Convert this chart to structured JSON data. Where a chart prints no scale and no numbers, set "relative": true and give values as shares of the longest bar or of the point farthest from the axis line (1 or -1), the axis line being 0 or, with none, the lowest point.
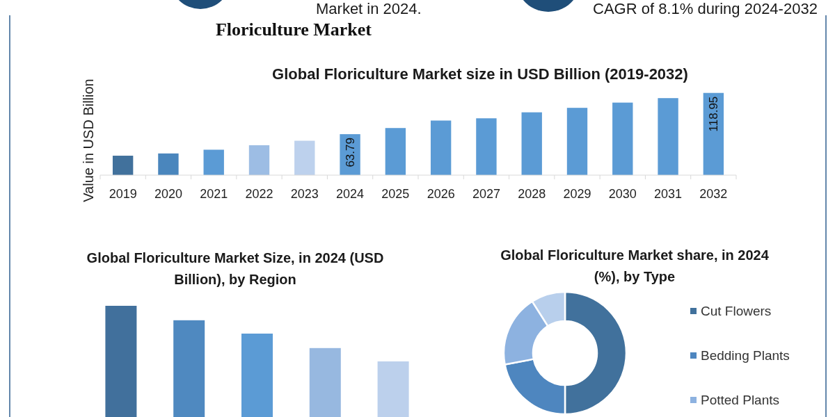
{
  "chart_data": [
    {
      "type": "other",
      "title": "Floriculture Market",
      "annotations": [
        "Market in 2024.",
        "CAGR of 8.1% during 2024-2032"
      ]
    },
    {
      "type": "bar",
      "title": "Global Floriculture Market size in USD Billion (2019-2032)",
      "ylabel": "Value in USD Billion",
      "categories": [
        "2019",
        "2020",
        "2021",
        "2022",
        "2023",
        "2024",
        "2025",
        "2026",
        "2027",
        "2028",
        "2029",
        "2030",
        "2031",
        "2032"
      ],
      "values": [
        35,
        38,
        43,
        49,
        55,
        63.79,
        72,
        82,
        85,
        93,
        99,
        106,
        112,
        118.95
      ],
      "colors": [
        "#41719c",
        "#4a86bd",
        "#5b9bd5",
        "#9dbde4",
        "#bdd1ed",
        "#5b9bd5",
        "#5b9bd5",
        "#5b9bd5",
        "#5b9bd5",
        "#5b9bd5",
        "#5b9bd5",
        "#5b9bd5",
        "#5b9bd5",
        "#5b9bd5"
      ],
      "value_labels": [
        null,
        null,
        null,
        null,
        null,
        "63.79",
        null,
        null,
        null,
        null,
        null,
        null,
        null,
        "118.95"
      ],
      "ylim": [
        9,
        118.95
      ],
      "tick_labels": "x"
    },
    {
      "type": "bar",
      "title": "Global Floriculture Market Size, in 2024 (USD Billion), by Region",
      "categories": [
        null,
        null,
        null,
        null,
        null
      ],
      "values": [
        1,
        0.87,
        0.75,
        0.62,
        0.5
      ],
      "colors": [
        "#41709c",
        "#4f89c0",
        "#5b9bd5",
        "#97b8e0",
        "#bcd0ec"
      ],
      "relative": true
    },
    {
      "type": "donut",
      "title": "Global Floriculture Market share, in 2024 (%), by Type",
      "categories": [
        "Cut Flowers",
        "Bedding Plants",
        "Potted Plants",
        null
      ],
      "values": [
        50,
        22,
        19,
        9
      ],
      "colors": [
        "#41719c",
        "#4e86bf",
        "#8db2e0",
        "#b8cfec"
      ],
      "legend": "right"
    }
  ]
}
